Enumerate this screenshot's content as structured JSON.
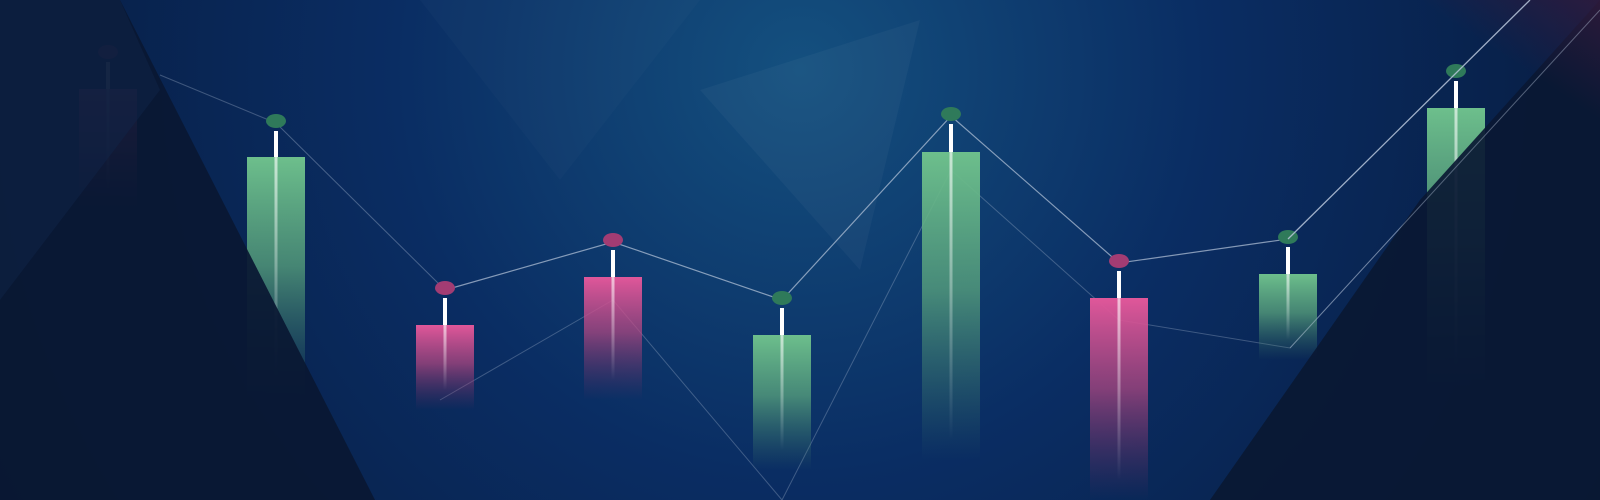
{
  "banner": {
    "description_visible_text": "",
    "colors": {
      "background_center": "#14507f",
      "background_mid": "#0a2d63",
      "background_edge": "#071a3c",
      "shard_dark": "#0a1833",
      "bullish": "#6dbf8c",
      "bullish_dot": "#2f7a5a",
      "bearish": "#e0579a",
      "bearish_dot": "#a23c73",
      "wick": "#ffffff",
      "line": "#b9c7dc"
    },
    "candles": [
      {
        "direction": "bearish"
      },
      {
        "direction": "bullish"
      },
      {
        "direction": "bearish"
      },
      {
        "direction": "bearish"
      },
      {
        "direction": "bullish"
      },
      {
        "direction": "bullish"
      },
      {
        "direction": "bearish"
      },
      {
        "direction": "bullish"
      },
      {
        "direction": "bullish"
      }
    ]
  }
}
